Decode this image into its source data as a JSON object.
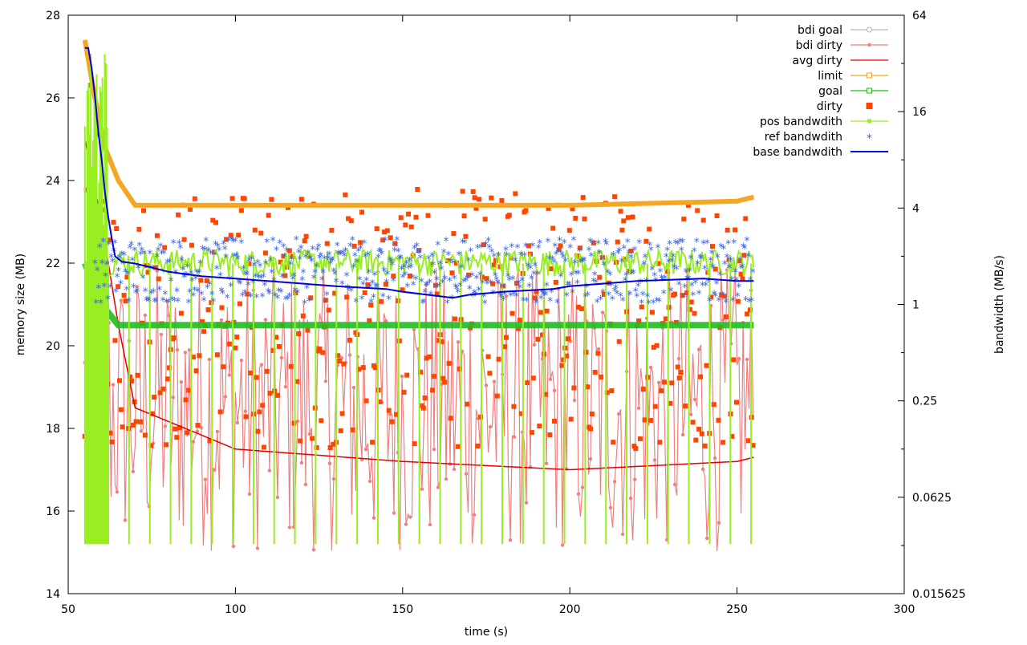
{
  "chart_data": {
    "type": "line",
    "xlabel": "time (s)",
    "ylabel": "memory size (MB)",
    "y2label": "bandwidth (MB/s)",
    "xlim": [
      50,
      300
    ],
    "ylim": [
      14,
      28
    ],
    "y2lim": [
      0.015625,
      64
    ],
    "y2scale": "log2",
    "x_ticks": [
      "50",
      "100",
      "150",
      "200",
      "250",
      "300"
    ],
    "y_ticks": [
      "14",
      "16",
      "18",
      "20",
      "22",
      "24",
      "26",
      "28"
    ],
    "y2_ticks": [
      "0.015625",
      "0.0625",
      "0.25",
      "1",
      "4",
      "16",
      "64"
    ],
    "grid": false,
    "legend_position": "top-right",
    "legend": [
      {
        "name": "bdi goal",
        "color": "#b3b3b3",
        "marker": "circle"
      },
      {
        "name": "bdi dirty",
        "color": "#f08080",
        "marker": "dot"
      },
      {
        "name": "avg dirty",
        "color": "#e00000",
        "marker": "none"
      },
      {
        "name": "limit",
        "color": "#f5a623",
        "marker": "square-open"
      },
      {
        "name": "goal",
        "color": "#22bb22",
        "marker": "square-open"
      },
      {
        "name": "dirty",
        "color": "#ff4500",
        "marker": "square-filled"
      },
      {
        "name": "pos bandwdith",
        "color": "#99ee22",
        "marker": "square-small"
      },
      {
        "name": "ref bandwdith",
        "color": "#4169e1",
        "marker": "star"
      },
      {
        "name": "base bandwdith",
        "color": "#0000dd",
        "marker": "none"
      }
    ],
    "series": [
      {
        "name": "limit",
        "axis": "y",
        "points": [
          [
            55,
            27.4
          ],
          [
            58,
            26.0
          ],
          [
            61,
            24.8
          ],
          [
            65,
            24.0
          ],
          [
            70,
            23.4
          ],
          [
            100,
            23.4
          ],
          [
            150,
            23.4
          ],
          [
            200,
            23.4
          ],
          [
            250,
            23.5
          ],
          [
            255,
            23.6
          ]
        ]
      },
      {
        "name": "goal",
        "axis": "y",
        "points": [
          [
            55,
            22.0
          ],
          [
            60,
            21.0
          ],
          [
            65,
            20.5
          ],
          [
            100,
            20.5
          ],
          [
            150,
            20.5
          ],
          [
            200,
            20.5
          ],
          [
            255,
            20.5
          ]
        ]
      },
      {
        "name": "avg dirty",
        "axis": "y",
        "points": [
          [
            55,
            25.0
          ],
          [
            60,
            23.0
          ],
          [
            65,
            20.5
          ],
          [
            70,
            18.5
          ],
          [
            100,
            17.5
          ],
          [
            150,
            17.2
          ],
          [
            200,
            17.0
          ],
          [
            250,
            17.2
          ],
          [
            255,
            17.3
          ]
        ]
      },
      {
        "name": "base bandwdith",
        "axis": "y2",
        "points": [
          [
            55,
            40
          ],
          [
            56,
            40
          ],
          [
            57,
            30
          ],
          [
            58,
            20
          ],
          [
            59,
            12
          ],
          [
            60,
            8
          ],
          [
            61,
            5
          ],
          [
            62,
            3.5
          ],
          [
            63,
            2.6
          ],
          [
            64,
            2.0
          ],
          [
            66,
            1.85
          ],
          [
            70,
            1.8
          ],
          [
            75,
            1.7
          ],
          [
            80,
            1.6
          ],
          [
            90,
            1.5
          ],
          [
            100,
            1.45
          ],
          [
            120,
            1.35
          ],
          [
            130,
            1.3
          ],
          [
            145,
            1.25
          ],
          [
            150,
            1.2
          ],
          [
            165,
            1.1
          ],
          [
            170,
            1.15
          ],
          [
            180,
            1.2
          ],
          [
            195,
            1.25
          ],
          [
            200,
            1.3
          ],
          [
            220,
            1.4
          ],
          [
            240,
            1.45
          ],
          [
            250,
            1.4
          ],
          [
            255,
            1.4
          ]
        ]
      },
      {
        "name": "pos bandwdith",
        "axis": "y2",
        "band": [
          1.5,
          2.2
        ],
        "range": [
          60,
          255
        ]
      },
      {
        "name": "ref bandwdith",
        "axis": "y2",
        "band": [
          1.0,
          2.5
        ],
        "range": [
          58,
          255
        ]
      },
      {
        "name": "dirty",
        "axis": "y",
        "band": [
          17.5,
          24.0
        ],
        "range": [
          55,
          255
        ]
      },
      {
        "name": "bdi dirty",
        "axis": "y",
        "band": [
          15.0,
          22.0
        ],
        "range": [
          55,
          255
        ]
      }
    ]
  }
}
